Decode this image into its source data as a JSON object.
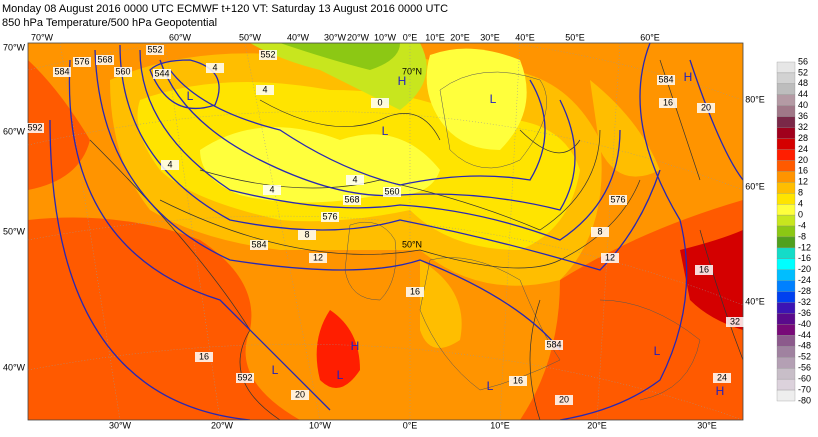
{
  "header": {
    "line1": "Monday 08 August 2016 0000 UTC  ECMWF t+120  VT: Saturday 13 August 2016 0000 UTC",
    "line2": "850 hPa Temperature/500 hPa Geopotential"
  },
  "legend": {
    "levels": [
      56,
      52,
      48,
      44,
      40,
      36,
      32,
      28,
      24,
      20,
      16,
      12,
      8,
      4,
      0,
      -4,
      -8,
      -12,
      -16,
      -20,
      -24,
      -28,
      -32,
      -36,
      -40,
      -44,
      -48,
      -52,
      -56,
      -60,
      -70,
      -80
    ],
    "colors": [
      "#e6e6e6",
      "#d2d2d2",
      "#bdbdbd",
      "#b49aa4",
      "#a07888",
      "#7a2848",
      "#a0001c",
      "#d40000",
      "#ff1e00",
      "#ff5a00",
      "#ff9400",
      "#ffbe00",
      "#ffe400",
      "#ffff3c",
      "#c8e61e",
      "#8cc814",
      "#50a01e",
      "#14dcc8",
      "#00ffff",
      "#00beff",
      "#0080ff",
      "#0040f0",
      "#3c14b4",
      "#5a0a8c",
      "#780a78",
      "#8c5a8c",
      "#a082a0",
      "#b4a0b4",
      "#c8bec8",
      "#dcd2dc",
      "#eeeeee"
    ]
  },
  "map_labels": {
    "top": [
      "70°W",
      "60°W",
      "50°W",
      "40°W",
      "30°W",
      "20°W",
      "10°W",
      "0°E",
      "10°E",
      "20°E",
      "30°E",
      "40°E",
      "50°E",
      "60°E"
    ],
    "bottom": [
      "30°W",
      "20°W",
      "10°W",
      "0°E",
      "10°E",
      "20°E",
      "30°E"
    ],
    "left": [
      "70°W",
      "60°W",
      "50°W",
      "40°W"
    ],
    "right": [
      "80°E",
      "60°E",
      "40°E"
    ],
    "inner": [
      "70°N",
      "50°N"
    ],
    "contours": [
      592,
      584,
      576,
      568,
      560,
      552,
      544,
      4,
      4,
      552,
      0,
      4,
      4,
      4,
      560,
      568,
      576,
      584,
      8,
      12,
      16,
      16,
      20,
      592,
      16,
      20,
      584,
      12,
      8,
      576,
      584,
      16,
      20,
      16,
      24,
      32
    ],
    "centres": [
      "L",
      "H",
      "L",
      "L",
      "H",
      "H",
      "L",
      "L",
      "L",
      "L",
      "H"
    ]
  }
}
